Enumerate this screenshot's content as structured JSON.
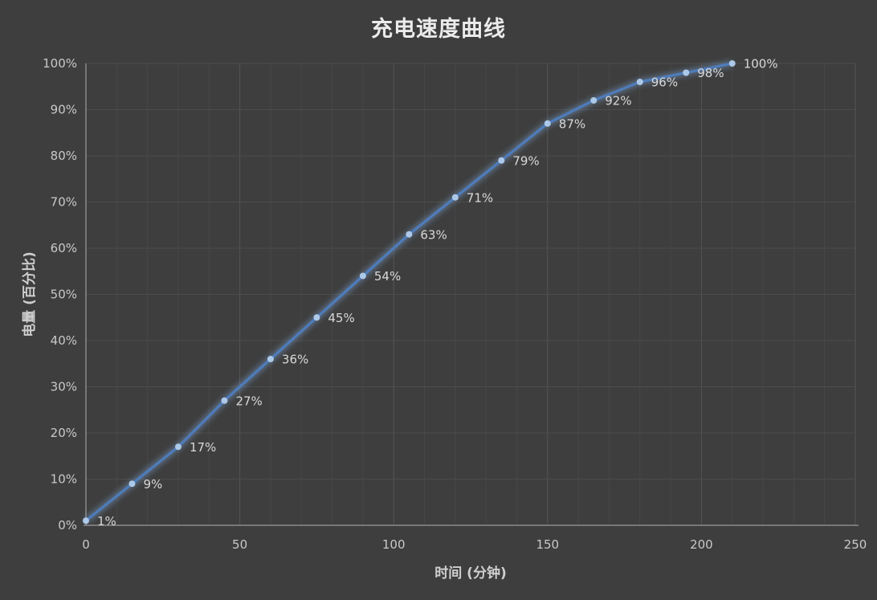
{
  "title": "充电速度曲线",
  "chart_data": {
    "type": "line",
    "title": "充电速度曲线",
    "xlabel": "时间 (分钟)",
    "ylabel": "电量 (百分比)",
    "x": [
      0,
      15,
      30,
      45,
      60,
      75,
      90,
      105,
      120,
      135,
      150,
      165,
      180,
      195,
      210
    ],
    "values": [
      1,
      9,
      17,
      27,
      36,
      45,
      54,
      63,
      71,
      79,
      87,
      92,
      96,
      98,
      100
    ],
    "point_labels": [
      "1%",
      "9%",
      "17%",
      "27%",
      "36%",
      "45%",
      "54%",
      "63%",
      "71%",
      "79%",
      "87%",
      "92%",
      "96%",
      "98%",
      "100%"
    ],
    "xlim": [
      0,
      250
    ],
    "ylim": [
      0,
      100
    ],
    "x_ticks": [
      0,
      50,
      100,
      150,
      200,
      250
    ],
    "y_ticks": [
      "0%",
      "10%",
      "20%",
      "30%",
      "40%",
      "50%",
      "60%",
      "70%",
      "80%",
      "90%",
      "100%"
    ],
    "grid": "horizontal every 10%, vertical minor every 10 min, vertical major every 50 min",
    "legend": "none",
    "colors": {
      "background": "#3e3e3e",
      "line": "#4e7cbb",
      "line_glow": "#7fa6d6",
      "marker": "#adc9e9",
      "grid_minor": "#474747",
      "grid_major": "#555555",
      "grid_horizontal": "#4c4c4c",
      "axis_line": "#9b9b9b",
      "tick_text": "#c9c9c9",
      "data_label_text": "#d9d9d9",
      "title_text": "#ebebeb"
    }
  }
}
